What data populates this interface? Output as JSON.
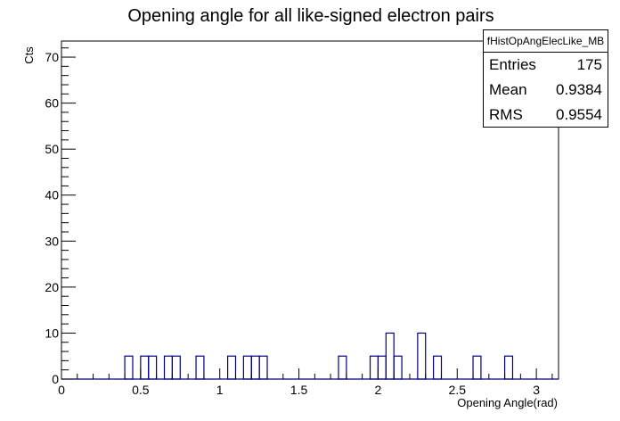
{
  "chart_data": {
    "type": "bar",
    "title": "Opening angle for all like-signed electron pairs",
    "xlabel": "Opening Angle(rad)",
    "ylabel": "Cts",
    "xlim": [
      0,
      3.14
    ],
    "ylim": [
      0,
      73.5
    ],
    "bin_width": 0.05,
    "x_ticks": [
      "0",
      "0.5",
      "1",
      "1.5",
      "2",
      "2.5",
      "3"
    ],
    "y_ticks": [
      "0",
      "10",
      "20",
      "30",
      "40",
      "50",
      "60",
      "70"
    ],
    "bins": [
      {
        "x": 0.4,
        "value": 5
      },
      {
        "x": 0.45,
        "value": 0
      },
      {
        "x": 0.5,
        "value": 5
      },
      {
        "x": 0.55,
        "value": 5
      },
      {
        "x": 0.65,
        "value": 5
      },
      {
        "x": 0.7,
        "value": 5
      },
      {
        "x": 0.85,
        "value": 5
      },
      {
        "x": 1.05,
        "value": 5
      },
      {
        "x": 1.15,
        "value": 5
      },
      {
        "x": 1.2,
        "value": 5
      },
      {
        "x": 1.25,
        "value": 5
      },
      {
        "x": 1.75,
        "value": 5
      },
      {
        "x": 1.95,
        "value": 5
      },
      {
        "x": 2.0,
        "value": 5
      },
      {
        "x": 2.05,
        "value": 10
      },
      {
        "x": 2.1,
        "value": 5
      },
      {
        "x": 2.25,
        "value": 10
      },
      {
        "x": 2.35,
        "value": 5
      },
      {
        "x": 2.6,
        "value": 5
      },
      {
        "x": 2.8,
        "value": 5
      }
    ],
    "stats": {
      "name": "fHistOpAngElecLike_MB",
      "entries_label": "Entries",
      "entries_value": "175",
      "mean_label": "Mean",
      "mean_value": "0.9384",
      "rms_label": "RMS",
      "rms_value": "0.9554"
    },
    "line_color": "#000080",
    "grid": false
  }
}
